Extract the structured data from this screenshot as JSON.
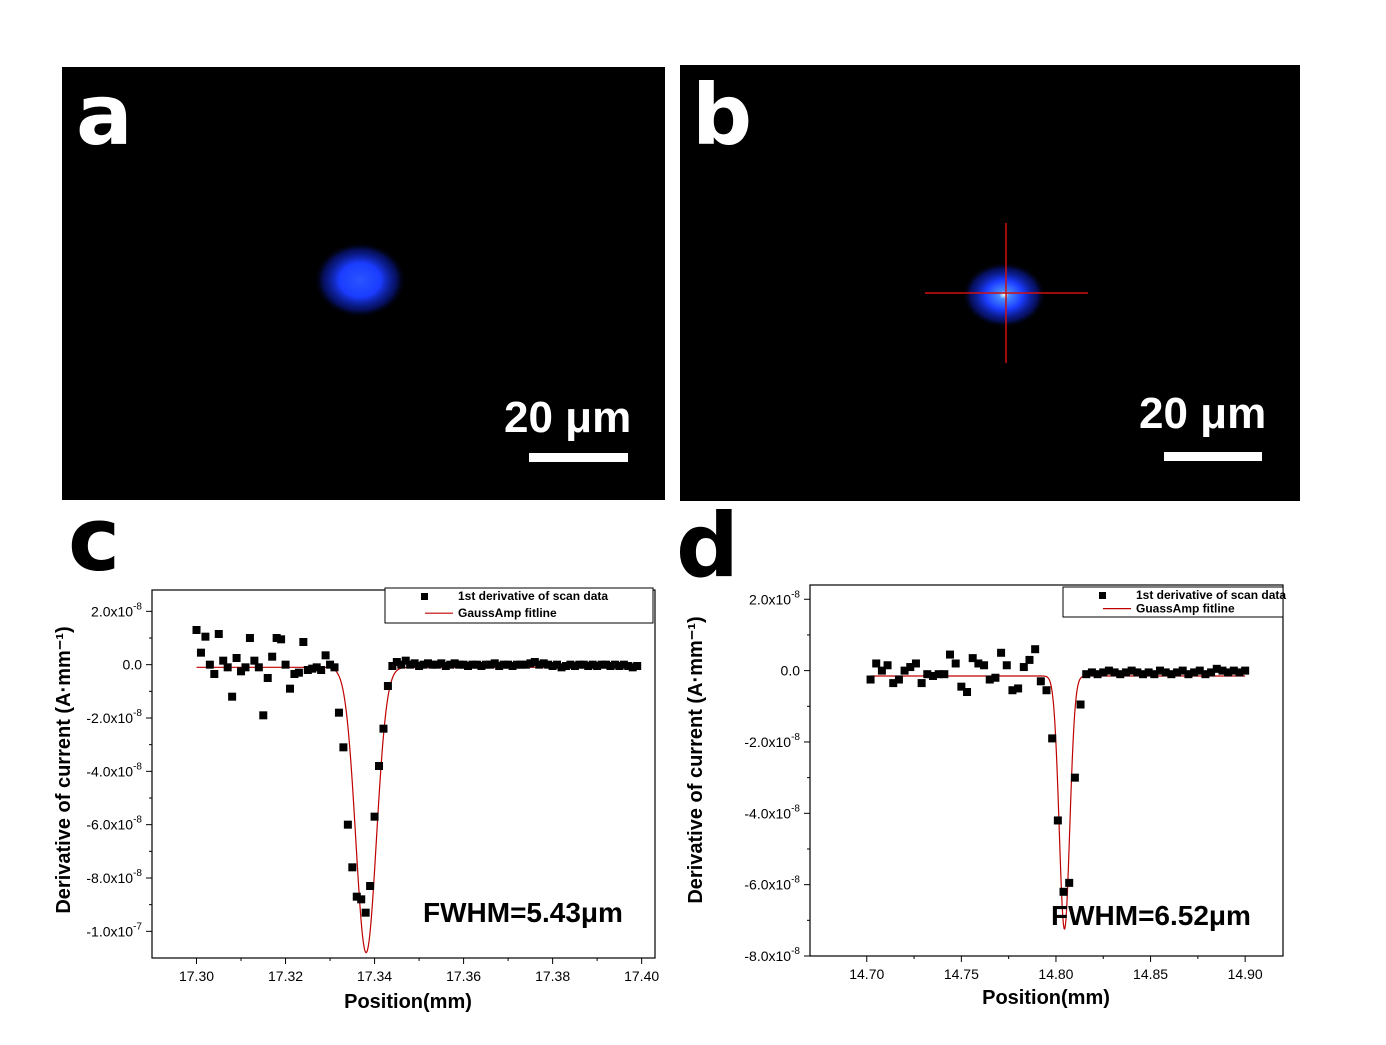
{
  "panels": {
    "a": {
      "letter": "a",
      "scale_label": "20 μm"
    },
    "b": {
      "letter": "b",
      "scale_label": "20 μm"
    },
    "c": {
      "letter": "c"
    },
    "d": {
      "letter": "d"
    }
  },
  "colors": {
    "spot_blue": "#1a3cff",
    "crosshair": "#d01010",
    "data_marker": "#000000",
    "fit_line": "#c00000"
  },
  "chart_data": [
    {
      "id": "c",
      "type": "scatter",
      "xlabel": "Position(mm)",
      "ylabel": "Derivative of current (A·mm⁻¹)",
      "xlim": [
        17.29,
        17.403
      ],
      "ylim": [
        -1.1e-07,
        2.8e-08
      ],
      "x_ticks": [
        17.3,
        17.32,
        17.34,
        17.36,
        17.38,
        17.4
      ],
      "x_tick_labels": [
        "17.30",
        "17.32",
        "17.34",
        "17.36",
        "17.38",
        "17.40"
      ],
      "y_ticks": [
        2e-08,
        0,
        -2e-08,
        -4e-08,
        -6e-08,
        -8e-08,
        -1e-07
      ],
      "y_tick_labels": [
        {
          "mant": "2.0x10",
          "exp": "-8"
        },
        {
          "mant": "0.0",
          "exp": ""
        },
        {
          "mant": "-2.0x10",
          "exp": "-8"
        },
        {
          "mant": "-4.0x10",
          "exp": "-8"
        },
        {
          "mant": "-6.0x10",
          "exp": "-8"
        },
        {
          "mant": "-8.0x10",
          "exp": "-8"
        },
        {
          "mant": "-1.0x10",
          "exp": "-7"
        }
      ],
      "legend": [
        "1st derivative of scan data",
        "GaussAmp fitline"
      ],
      "annotation": "FWHM=5.43μm",
      "fit": {
        "type": "gauss",
        "y0": -1e-09,
        "amp": -1.07e-07,
        "xc": 17.3381,
        "fwhm": 0.00543
      },
      "series": [
        {
          "name": "1st derivative of scan data",
          "points": [
            [
              17.3,
              1.3e-08
            ],
            [
              17.301,
              4.5e-09
            ],
            [
              17.302,
              1.05e-08
            ],
            [
              17.303,
              0
            ],
            [
              17.304,
              -3.5e-09
            ],
            [
              17.305,
              1.15e-08
            ],
            [
              17.306,
              1.5e-09
            ],
            [
              17.307,
              -1e-09
            ],
            [
              17.308,
              -1.2e-08
            ],
            [
              17.309,
              2.5e-09
            ],
            [
              17.31,
              -2.5e-09
            ],
            [
              17.311,
              -1e-09
            ],
            [
              17.312,
              1e-08
            ],
            [
              17.313,
              1.5e-09
            ],
            [
              17.314,
              -1e-09
            ],
            [
              17.315,
              -1.9e-08
            ],
            [
              17.316,
              -5e-09
            ],
            [
              17.317,
              3e-09
            ],
            [
              17.318,
              1e-08
            ],
            [
              17.319,
              9.5e-09
            ],
            [
              17.32,
              0
            ],
            [
              17.321,
              -9e-09
            ],
            [
              17.322,
              -3.5e-09
            ],
            [
              17.323,
              -3e-09
            ],
            [
              17.324,
              8.5e-09
            ],
            [
              17.325,
              -2e-09
            ],
            [
              17.326,
              -1.5e-09
            ],
            [
              17.327,
              -1e-09
            ],
            [
              17.328,
              -2e-09
            ],
            [
              17.329,
              3.5e-09
            ],
            [
              17.33,
              0
            ],
            [
              17.331,
              -1e-09
            ],
            [
              17.332,
              -1.8e-08
            ],
            [
              17.333,
              -3.1e-08
            ],
            [
              17.334,
              -6e-08
            ],
            [
              17.335,
              -7.6e-08
            ],
            [
              17.336,
              -8.7e-08
            ],
            [
              17.337,
              -8.8e-08
            ],
            [
              17.338,
              -9.3e-08
            ],
            [
              17.339,
              -8.3e-08
            ],
            [
              17.34,
              -5.7e-08
            ],
            [
              17.341,
              -3.8e-08
            ],
            [
              17.342,
              -2.4e-08
            ],
            [
              17.343,
              -8e-09
            ],
            [
              17.344,
              -5e-10
            ],
            [
              17.345,
              1e-09
            ],
            [
              17.346,
              0
            ],
            [
              17.347,
              1.5e-09
            ],
            [
              17.348,
              0
            ],
            [
              17.349,
              5e-10
            ],
            [
              17.35,
              -5e-10
            ],
            [
              17.351,
              0
            ],
            [
              17.352,
              5e-10
            ],
            [
              17.353,
              0
            ],
            [
              17.354,
              0
            ],
            [
              17.355,
              5e-10
            ],
            [
              17.356,
              -5e-10
            ],
            [
              17.357,
              0
            ],
            [
              17.358,
              5e-10
            ],
            [
              17.359,
              0
            ],
            [
              17.36,
              0
            ],
            [
              17.361,
              -5e-10
            ],
            [
              17.362,
              0
            ],
            [
              17.363,
              0
            ],
            [
              17.364,
              -5e-10
            ],
            [
              17.365,
              0
            ],
            [
              17.366,
              0
            ],
            [
              17.367,
              5e-10
            ],
            [
              17.368,
              -5e-10
            ],
            [
              17.369,
              0
            ],
            [
              17.37,
              0
            ],
            [
              17.371,
              -5e-10
            ],
            [
              17.372,
              0
            ],
            [
              17.373,
              0
            ],
            [
              17.374,
              0
            ],
            [
              17.375,
              5e-10
            ],
            [
              17.376,
              1e-09
            ],
            [
              17.377,
              0
            ],
            [
              17.378,
              5e-10
            ],
            [
              17.379,
              0
            ],
            [
              17.38,
              -5e-10
            ],
            [
              17.381,
              0
            ],
            [
              17.382,
              -1e-09
            ],
            [
              17.383,
              -5e-10
            ],
            [
              17.384,
              0
            ],
            [
              17.385,
              -5e-10
            ],
            [
              17.386,
              0
            ],
            [
              17.387,
              0
            ],
            [
              17.388,
              -5e-10
            ],
            [
              17.389,
              0
            ],
            [
              17.39,
              -5e-10
            ],
            [
              17.391,
              0
            ],
            [
              17.392,
              0
            ],
            [
              17.393,
              -5e-10
            ],
            [
              17.394,
              0
            ],
            [
              17.395,
              -5e-10
            ],
            [
              17.396,
              0
            ],
            [
              17.397,
              -5e-10
            ],
            [
              17.398,
              -1e-09
            ],
            [
              17.399,
              -5e-10
            ]
          ]
        },
        {
          "name": "GaussAmp fitline"
        }
      ]
    },
    {
      "id": "d",
      "type": "scatter",
      "xlabel": "Position(mm)",
      "ylabel": "Derivative of current (A·mm⁻¹)",
      "xlim": [
        14.67,
        14.92
      ],
      "ylim": [
        -8e-08,
        2.4e-08
      ],
      "x_ticks": [
        14.7,
        14.75,
        14.8,
        14.85,
        14.9
      ],
      "x_tick_labels": [
        "14.70",
        "14.75",
        "14.80",
        "14.85",
        "14.90"
      ],
      "y_ticks": [
        2e-08,
        0,
        -2e-08,
        -4e-08,
        -6e-08,
        -8e-08
      ],
      "y_tick_labels": [
        {
          "mant": "2.0x10",
          "exp": "-8"
        },
        {
          "mant": "0.0",
          "exp": ""
        },
        {
          "mant": "-2.0x10",
          "exp": "-8"
        },
        {
          "mant": "-4.0x10",
          "exp": "-8"
        },
        {
          "mant": "-6.0x10",
          "exp": "-8"
        },
        {
          "mant": "-8.0x10",
          "exp": "-8"
        }
      ],
      "legend": [
        "1st derivative of scan data",
        "GuassAmp fitline"
      ],
      "annotation": "FWHM=6.52μm",
      "fit": {
        "type": "gauss",
        "y0": -1.5e-09,
        "amp": -7.1e-08,
        "xc": 14.8045,
        "fwhm": 0.00652
      },
      "series": [
        {
          "name": "1st derivative of scan data",
          "points": [
            [
              14.702,
              -2.5e-09
            ],
            [
              14.705,
              2e-09
            ],
            [
              14.708,
              0
            ],
            [
              14.711,
              1.5e-09
            ],
            [
              14.714,
              -3.5e-09
            ],
            [
              14.717,
              -2.5e-09
            ],
            [
              14.72,
              0
            ],
            [
              14.723,
              1e-09
            ],
            [
              14.726,
              2e-09
            ],
            [
              14.729,
              -3.5e-09
            ],
            [
              14.732,
              -1e-09
            ],
            [
              14.735,
              -1.5e-09
            ],
            [
              14.738,
              -1e-09
            ],
            [
              14.741,
              -1e-09
            ],
            [
              14.744,
              4.5e-09
            ],
            [
              14.747,
              2e-09
            ],
            [
              14.75,
              -4.5e-09
            ],
            [
              14.753,
              -6e-09
            ],
            [
              14.756,
              3.5e-09
            ],
            [
              14.759,
              2e-09
            ],
            [
              14.762,
              1.5e-09
            ],
            [
              14.765,
              -2.5e-09
            ],
            [
              14.768,
              -2e-09
            ],
            [
              14.771,
              5e-09
            ],
            [
              14.774,
              1.5e-09
            ],
            [
              14.777,
              -5.5e-09
            ],
            [
              14.78,
              -5e-09
            ],
            [
              14.783,
              1e-09
            ],
            [
              14.786,
              3e-09
            ],
            [
              14.789,
              6e-09
            ],
            [
              14.792,
              -3e-09
            ],
            [
              14.795,
              -5.5e-09
            ],
            [
              14.798,
              -1.9e-08
            ],
            [
              14.801,
              -4.2e-08
            ],
            [
              14.804,
              -6.2e-08
            ],
            [
              14.807,
              -5.95e-08
            ],
            [
              14.81,
              -3e-08
            ],
            [
              14.813,
              -9.5e-09
            ],
            [
              14.816,
              -1e-09
            ],
            [
              14.819,
              -5e-10
            ],
            [
              14.822,
              -1e-09
            ],
            [
              14.825,
              -5e-10
            ],
            [
              14.828,
              0
            ],
            [
              14.831,
              -5e-10
            ],
            [
              14.834,
              -1e-09
            ],
            [
              14.837,
              -5e-10
            ],
            [
              14.84,
              0
            ],
            [
              14.843,
              -5e-10
            ],
            [
              14.846,
              -1e-09
            ],
            [
              14.849,
              -5e-10
            ],
            [
              14.852,
              -1e-09
            ],
            [
              14.855,
              0
            ],
            [
              14.858,
              -5e-10
            ],
            [
              14.861,
              -1e-09
            ],
            [
              14.864,
              -5e-10
            ],
            [
              14.867,
              0
            ],
            [
              14.87,
              -1e-09
            ],
            [
              14.873,
              -5e-10
            ],
            [
              14.876,
              0
            ],
            [
              14.879,
              -1e-09
            ],
            [
              14.882,
              -5e-10
            ],
            [
              14.885,
              5e-10
            ],
            [
              14.888,
              0
            ],
            [
              14.891,
              -5e-10
            ],
            [
              14.894,
              0
            ],
            [
              14.897,
              -5e-10
            ],
            [
              14.9,
              0
            ]
          ]
        },
        {
          "name": "GuassAmp fitline"
        }
      ]
    }
  ]
}
